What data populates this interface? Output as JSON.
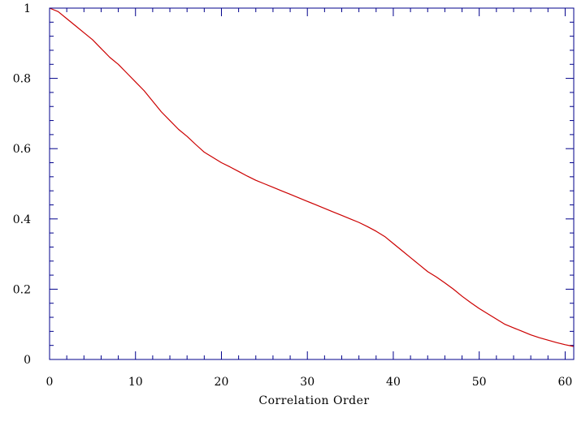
{
  "chart_data": {
    "type": "line",
    "title": "",
    "xlabel": "Correlation Order",
    "ylabel": "",
    "xlim": [
      0,
      61
    ],
    "ylim": [
      0,
      1
    ],
    "x_ticks": [
      0,
      10,
      20,
      30,
      40,
      50,
      60
    ],
    "x_tick_labels": [
      "0",
      "10",
      "20",
      "30",
      "40",
      "50",
      "60"
    ],
    "y_ticks": [
      0,
      0.2,
      0.4,
      0.6,
      0.8,
      1
    ],
    "y_tick_labels": [
      "0",
      "0.2",
      "0.4",
      "0.6",
      "0.8",
      "1"
    ],
    "x_minor_tick_step": 2,
    "y_minor_tick_step": 0.04,
    "grid": false,
    "frame_color": "#00008b",
    "series": [
      {
        "color": "#cc0000",
        "x": [
          0,
          1,
          2,
          3,
          4,
          5,
          6,
          7,
          8,
          9,
          10,
          11,
          12,
          13,
          14,
          15,
          16,
          17,
          18,
          19,
          20,
          21,
          22,
          23,
          24,
          25,
          26,
          27,
          28,
          29,
          30,
          31,
          32,
          33,
          34,
          35,
          36,
          37,
          38,
          39,
          40,
          41,
          42,
          43,
          44,
          45,
          46,
          47,
          48,
          49,
          50,
          51,
          52,
          53,
          54,
          55,
          56,
          57,
          58,
          59,
          60,
          61
        ],
        "y": [
          1.0,
          0.99,
          0.97,
          0.95,
          0.93,
          0.91,
          0.885,
          0.86,
          0.84,
          0.815,
          0.79,
          0.765,
          0.735,
          0.705,
          0.68,
          0.655,
          0.635,
          0.612,
          0.59,
          0.575,
          0.56,
          0.548,
          0.535,
          0.522,
          0.51,
          0.5,
          0.49,
          0.48,
          0.47,
          0.46,
          0.45,
          0.44,
          0.43,
          0.42,
          0.41,
          0.4,
          0.39,
          0.378,
          0.365,
          0.35,
          0.33,
          0.31,
          0.29,
          0.27,
          0.25,
          0.235,
          0.218,
          0.2,
          0.18,
          0.162,
          0.145,
          0.13,
          0.115,
          0.1,
          0.09,
          0.08,
          0.07,
          0.062,
          0.055,
          0.048,
          0.042,
          0.037
        ]
      }
    ]
  }
}
